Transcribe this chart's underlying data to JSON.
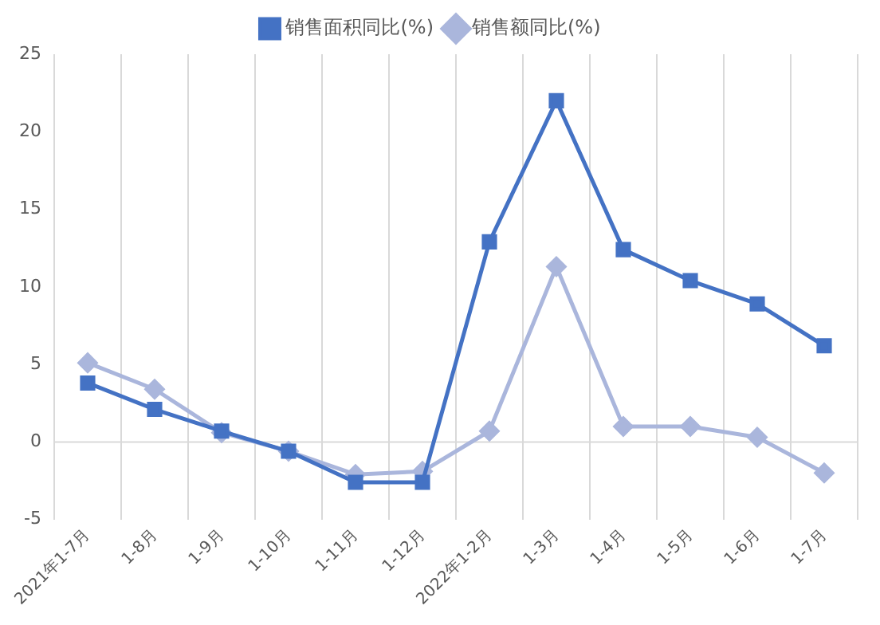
{
  "chart_data": {
    "type": "line",
    "categories": [
      "2021年1-7月",
      "1-8月",
      "1-9月",
      "1-10月",
      "1-11月",
      "1-12月",
      "2022年1-2月",
      "1-3月",
      "1-4月",
      "1-5月",
      "1-6月",
      "1-7月"
    ],
    "series": [
      {
        "name": "销售额同比(%)",
        "color": "#aab6dc",
        "marker": "diamond",
        "values": [
          5.1,
          3.4,
          0.6,
          -0.6,
          -2.1,
          -1.9,
          0.7,
          11.3,
          1.0,
          1.0,
          0.3,
          -2.0
        ]
      },
      {
        "name": "销售面积同比(%)",
        "color": "#4472c4",
        "marker": "square",
        "values": [
          3.8,
          2.1,
          0.7,
          -0.6,
          -2.6,
          -2.6,
          12.9,
          22.0,
          12.4,
          10.4,
          8.9,
          6.2
        ]
      }
    ],
    "ylim": [
      -5,
      25
    ],
    "yticks": [
      -5,
      0,
      5,
      10,
      15,
      20,
      25
    ],
    "grid": "x",
    "ref_lines": [
      {
        "axis": "y",
        "value": 0,
        "color": "#d9d9d9"
      }
    ],
    "legend": "top",
    "line_style": "solid"
  }
}
